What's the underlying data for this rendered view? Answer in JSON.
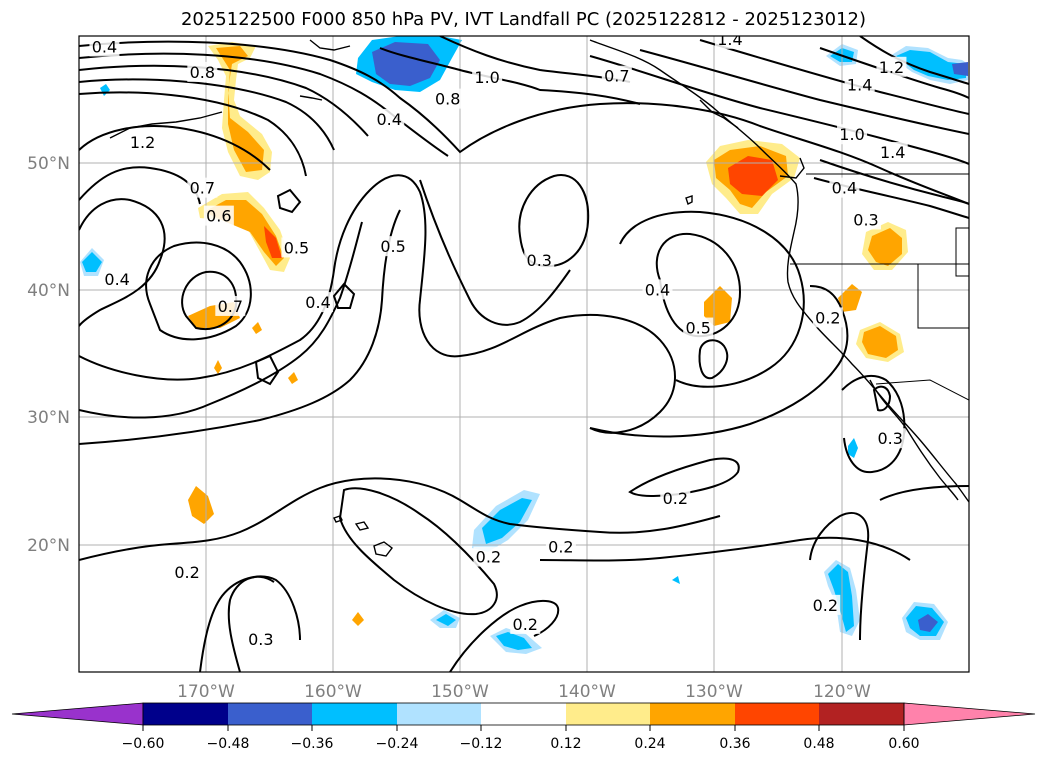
{
  "title": "2025122500 F000 850 hPa PV, IVT Landfall PC (2025122812 - 2025123012)",
  "map": {
    "lat_range": [
      10,
      60
    ],
    "lon_range": [
      -180,
      -110
    ],
    "lat_ticks": [
      "50°N",
      "40°N",
      "30°N",
      "20°N"
    ],
    "lon_ticks": [
      "170°W",
      "160°W",
      "150°W",
      "140°W",
      "130°W",
      "120°W"
    ],
    "contour_labels": [
      {
        "text": "0.4",
        "lon": -178,
        "lat": 59.1
      },
      {
        "text": "0.8",
        "lon": -170.3,
        "lat": 57.1
      },
      {
        "text": "1.2",
        "lon": -175,
        "lat": 51.6
      },
      {
        "text": "0.7",
        "lon": -170.3,
        "lat": 48.0
      },
      {
        "text": "0.6",
        "lon": -169,
        "lat": 45.8
      },
      {
        "text": "0.5",
        "lon": -162.9,
        "lat": 43.3
      },
      {
        "text": "0.4",
        "lon": -177,
        "lat": 40.8
      },
      {
        "text": "0.4",
        "lon": -161.2,
        "lat": 39.0
      },
      {
        "text": "0.7",
        "lon": -168.1,
        "lat": 38.7
      },
      {
        "text": "0.5",
        "lon": -155.3,
        "lat": 43.4
      },
      {
        "text": "0.4",
        "lon": -155.6,
        "lat": 53.4
      },
      {
        "text": "1.0",
        "lon": -147.9,
        "lat": 56.7
      },
      {
        "text": "0.8",
        "lon": -151,
        "lat": 55.0
      },
      {
        "text": "0.3",
        "lon": -143.8,
        "lat": 42.3
      },
      {
        "text": "0.4",
        "lon": -134.5,
        "lat": 40.0
      },
      {
        "text": "0.5",
        "lon": -131.3,
        "lat": 37.0
      },
      {
        "text": "1.4",
        "lon": -128.8,
        "lat": 59.7
      },
      {
        "text": "0.7",
        "lon": -137.7,
        "lat": 56.8
      },
      {
        "text": "1.0",
        "lon": -119.2,
        "lat": 52.2
      },
      {
        "text": "0.4",
        "lon": -119.8,
        "lat": 48.0
      },
      {
        "text": "0.3",
        "lon": -118.1,
        "lat": 45.5
      },
      {
        "text": "0.2",
        "lon": -121.1,
        "lat": 37.8
      },
      {
        "text": "1.2",
        "lon": -116.1,
        "lat": 57.5
      },
      {
        "text": "1.4",
        "lon": -118.6,
        "lat": 56.1
      },
      {
        "text": "1.4",
        "lon": -116,
        "lat": 50.8
      },
      {
        "text": "0.3",
        "lon": -116.2,
        "lat": 28.3
      },
      {
        "text": "0.2",
        "lon": -133.1,
        "lat": 23.6
      },
      {
        "text": "0.2",
        "lon": -147.8,
        "lat": 19.0
      },
      {
        "text": "0.2",
        "lon": -142.1,
        "lat": 19.8
      },
      {
        "text": "0.2",
        "lon": -144.9,
        "lat": 13.7
      },
      {
        "text": "0.2",
        "lon": -121.3,
        "lat": 15.2
      },
      {
        "text": "0.2",
        "lon": -171.5,
        "lat": 17.8
      },
      {
        "text": "0.3",
        "lon": -165.7,
        "lat": 12.5
      }
    ]
  },
  "colorbar": {
    "ticks": [
      "−0.60",
      "−0.48",
      "−0.36",
      "−0.24",
      "−0.12",
      "0.12",
      "0.24",
      "0.36",
      "0.48",
      "0.60"
    ],
    "colors": [
      "#9932cc",
      "#00008b",
      "#3a5fcd",
      "#00bfff",
      "#b0e2ff",
      "#ffffff",
      "#ffec8b",
      "#ffa500",
      "#ff4500",
      "#b22222",
      "#ff82ab"
    ]
  }
}
